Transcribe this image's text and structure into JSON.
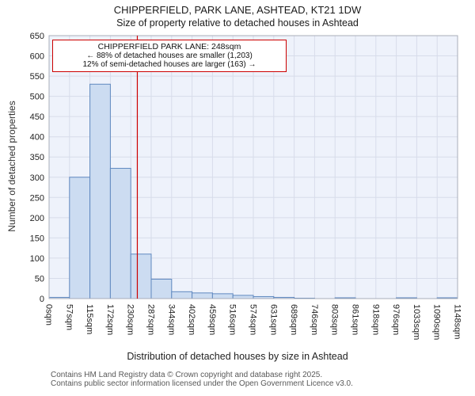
{
  "page": {
    "title_line1": "CHIPPERFIELD, PARK LANE, ASHTEAD, KT21 1DW",
    "title_line2": "Size of property relative to detached houses in Ashtead"
  },
  "chart_data": {
    "type": "bar",
    "title": "CHIPPERFIELD, PARK LANE, ASHTEAD, KT21 1DW",
    "subtitle": "Size of property relative to detached houses in Ashtead",
    "xlabel": "Distribution of detached houses by size in Ashtead",
    "ylabel": "Number of detached properties",
    "ylim": [
      0,
      650
    ],
    "ytick_step": 50,
    "grid": true,
    "bin_labels": [
      "0sqm",
      "57sqm",
      "115sqm",
      "172sqm",
      "230sqm",
      "287sqm",
      "344sqm",
      "402sqm",
      "459sqm",
      "516sqm",
      "574sqm",
      "631sqm",
      "689sqm",
      "746sqm",
      "803sqm",
      "861sqm",
      "918sqm",
      "976sqm",
      "1033sqm",
      "1090sqm",
      "1148sqm"
    ],
    "values": [
      3,
      300,
      530,
      322,
      110,
      48,
      17,
      14,
      12,
      8,
      5,
      3,
      1,
      0,
      2,
      0,
      0,
      2,
      0,
      2
    ],
    "marker": {
      "value_sqm": 248,
      "axis_max_sqm": 1148,
      "color": "#cc0000"
    },
    "annotation": {
      "line1": "CHIPPERFIELD PARK LANE: 248sqm",
      "line2": "← 88% of detached houses are smaller (1,203)",
      "line3": "12% of semi-detached houses are larger (163) →"
    },
    "colors": {
      "bar_fill": "#ccdcf1",
      "bar_stroke": "#6089c0",
      "plot_bg": "#eef2fb",
      "grid": "#d7dcea",
      "border": "#a8adba",
      "marker": "#cc0000"
    }
  },
  "footer": {
    "line1": "Contains HM Land Registry data © Crown copyright and database right 2025.",
    "line2": "Contains public sector information licensed under the Open Government Licence v3.0."
  }
}
